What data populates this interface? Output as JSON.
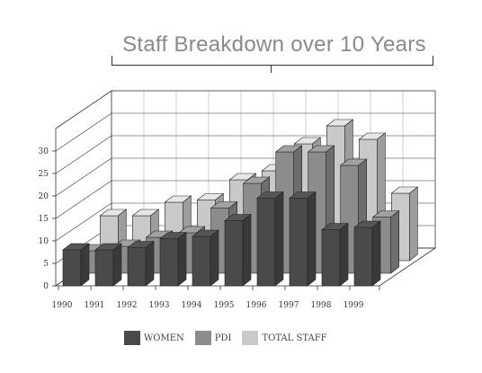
{
  "chart_data": {
    "type": "bar",
    "title": "Staff Breakdown over 10 Years",
    "categories": [
      "1990",
      "1991",
      "1992",
      "1993",
      "1994",
      "1995",
      "1996",
      "1997",
      "1998",
      "1999"
    ],
    "series": [
      {
        "name": "WOMEN",
        "values": [
          8,
          8,
          8.5,
          10.5,
          11,
          14.5,
          19.5,
          19.5,
          12.5,
          13
        ],
        "color": "#4a4a4a"
      },
      {
        "name": "PDI",
        "values": [
          5,
          6,
          8,
          9,
          14.5,
          20,
          27,
          27,
          24,
          12.5
        ],
        "color": "#8c8c8c"
      },
      {
        "name": "TOTAL STAFF",
        "values": [
          10,
          10,
          13,
          13.5,
          18,
          20,
          26,
          30,
          27,
          15
        ],
        "color": "#c9c9c9"
      }
    ],
    "yticks": [
      "0",
      "5",
      "10",
      "15",
      "20",
      "25",
      "30"
    ],
    "ylim": [
      0,
      35
    ],
    "grid": true,
    "legend_position": "bottom"
  }
}
